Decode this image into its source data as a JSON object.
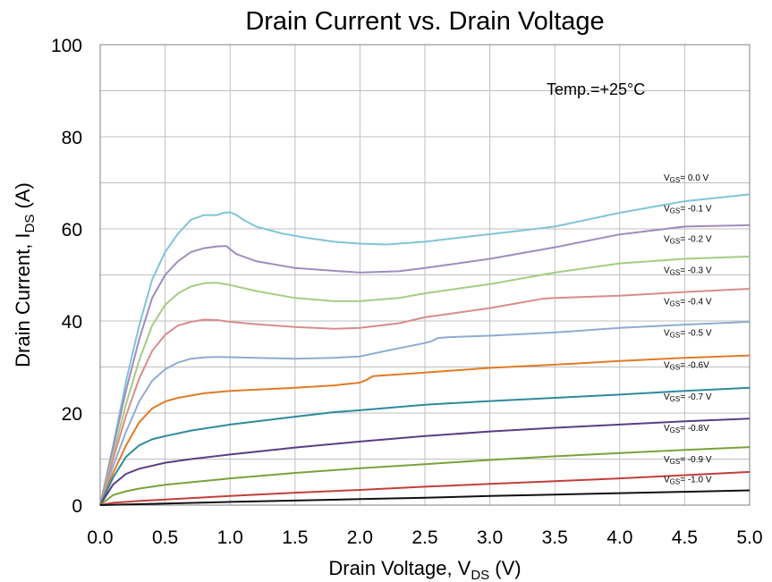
{
  "chart_data": {
    "type": "line",
    "title": "Drain Current vs. Drain Voltage",
    "xlabel": {
      "main": "Drain Voltage, V",
      "sub": "DS",
      "unit": " (V)"
    },
    "ylabel": {
      "main": "Drain Current, I",
      "sub": "DS",
      "unit": " (A)"
    },
    "xlim": [
      0,
      5
    ],
    "ylim": [
      0,
      100
    ],
    "x_ticks": [
      "0.0",
      "0.5",
      "1.0",
      "1.5",
      "2.0",
      "2.5",
      "3.0",
      "3.5",
      "4.0",
      "4.5",
      "5.0"
    ],
    "y_ticks": [
      "0",
      "20",
      "40",
      "60",
      "80",
      "100"
    ],
    "grid": true,
    "annotation": "Temp.=+25°C",
    "series": [
      {
        "name": "0.0 V",
        "label_pre": "V",
        "label_sub": "GS",
        "label_post": "= 0.0 V",
        "label_y": 70.5,
        "color": "#7fc4d8",
        "points": [
          [
            0,
            0
          ],
          [
            0.1,
            13
          ],
          [
            0.2,
            27
          ],
          [
            0.3,
            39
          ],
          [
            0.4,
            49
          ],
          [
            0.5,
            55
          ],
          [
            0.6,
            59
          ],
          [
            0.7,
            62
          ],
          [
            0.8,
            63
          ],
          [
            0.9,
            63
          ],
          [
            0.95,
            63.5
          ],
          [
            1.0,
            63.6
          ],
          [
            1.05,
            63
          ],
          [
            1.1,
            62
          ],
          [
            1.2,
            60.5
          ],
          [
            1.4,
            59
          ],
          [
            1.6,
            58
          ],
          [
            1.8,
            57.2
          ],
          [
            2.0,
            56.8
          ],
          [
            2.2,
            56.6
          ],
          [
            2.5,
            57.2
          ],
          [
            2.8,
            58.2
          ],
          [
            3.2,
            59.5
          ],
          [
            3.5,
            60.5
          ],
          [
            4.0,
            63.5
          ],
          [
            4.5,
            66
          ],
          [
            5.0,
            67.5
          ]
        ]
      },
      {
        "name": "-0.1 V",
        "label_pre": "V",
        "label_sub": "GS",
        "label_post": "= -0.1 V",
        "label_y": 63.8,
        "color": "#9f8cbf",
        "points": [
          [
            0,
            0
          ],
          [
            0.1,
            12.5
          ],
          [
            0.2,
            25
          ],
          [
            0.3,
            36
          ],
          [
            0.4,
            45
          ],
          [
            0.5,
            50
          ],
          [
            0.6,
            53
          ],
          [
            0.7,
            55
          ],
          [
            0.8,
            55.8
          ],
          [
            0.9,
            56.2
          ],
          [
            0.97,
            56.3
          ],
          [
            1.0,
            55.6
          ],
          [
            1.05,
            54.5
          ],
          [
            1.2,
            53
          ],
          [
            1.5,
            51.5
          ],
          [
            2.0,
            50.5
          ],
          [
            2.3,
            50.8
          ],
          [
            2.5,
            51.5
          ],
          [
            3.0,
            53.5
          ],
          [
            3.5,
            56
          ],
          [
            4.0,
            58.8
          ],
          [
            4.5,
            60.5
          ],
          [
            5.0,
            60.8
          ]
        ]
      },
      {
        "name": "-0.2 V",
        "label_pre": "V",
        "label_sub": "GS",
        "label_post": "= -0.2 V",
        "label_y": 57.2,
        "color": "#a6cc82",
        "points": [
          [
            0,
            0
          ],
          [
            0.1,
            11
          ],
          [
            0.2,
            22
          ],
          [
            0.3,
            31.5
          ],
          [
            0.4,
            39
          ],
          [
            0.5,
            43.5
          ],
          [
            0.6,
            46
          ],
          [
            0.7,
            47.5
          ],
          [
            0.8,
            48.2
          ],
          [
            0.9,
            48.3
          ],
          [
            1.0,
            47.8
          ],
          [
            1.2,
            46.5
          ],
          [
            1.5,
            45
          ],
          [
            1.8,
            44.3
          ],
          [
            2.0,
            44.3
          ],
          [
            2.3,
            45
          ],
          [
            2.5,
            46
          ],
          [
            3.0,
            48
          ],
          [
            3.5,
            50.5
          ],
          [
            4.0,
            52.5
          ],
          [
            4.5,
            53.5
          ],
          [
            5.0,
            54
          ]
        ]
      },
      {
        "name": "-0.3 V",
        "label_pre": "V",
        "label_sub": "GS",
        "label_post": "= -0.3 V",
        "label_y": 50.4,
        "color": "#d88c8c",
        "points": [
          [
            0,
            0
          ],
          [
            0.1,
            10
          ],
          [
            0.2,
            19.5
          ],
          [
            0.3,
            27.5
          ],
          [
            0.4,
            33.5
          ],
          [
            0.5,
            37
          ],
          [
            0.6,
            39
          ],
          [
            0.7,
            39.8
          ],
          [
            0.8,
            40.3
          ],
          [
            0.9,
            40.2
          ],
          [
            1.0,
            39.8
          ],
          [
            1.2,
            39.3
          ],
          [
            1.5,
            38.7
          ],
          [
            1.8,
            38.3
          ],
          [
            2.0,
            38.5
          ],
          [
            2.3,
            39.5
          ],
          [
            2.5,
            40.8
          ],
          [
            3.0,
            42.8
          ],
          [
            3.4,
            44.8
          ],
          [
            3.5,
            45
          ],
          [
            4.0,
            45.5
          ],
          [
            4.5,
            46.3
          ],
          [
            5.0,
            47
          ]
        ]
      },
      {
        "name": "-0.4 V",
        "label_pre": "V",
        "label_sub": "GS",
        "label_post": "= -0.4 V",
        "label_y": 43.6,
        "color": "#8facd2",
        "points": [
          [
            0,
            0
          ],
          [
            0.1,
            8.5
          ],
          [
            0.2,
            16
          ],
          [
            0.3,
            22.5
          ],
          [
            0.4,
            27
          ],
          [
            0.5,
            29.5
          ],
          [
            0.6,
            31
          ],
          [
            0.7,
            31.8
          ],
          [
            0.8,
            32.1
          ],
          [
            0.9,
            32.2
          ],
          [
            1.2,
            32
          ],
          [
            1.5,
            31.8
          ],
          [
            1.8,
            32
          ],
          [
            2.0,
            32.3
          ],
          [
            2.2,
            33.5
          ],
          [
            2.5,
            35.2
          ],
          [
            2.55,
            35.6
          ],
          [
            2.6,
            36.3
          ],
          [
            2.7,
            36.5
          ],
          [
            3.0,
            36.8
          ],
          [
            3.5,
            37.5
          ],
          [
            4.0,
            38.5
          ],
          [
            4.5,
            39.2
          ],
          [
            5.0,
            39.8
          ]
        ]
      },
      {
        "name": "-0.5 V",
        "label_pre": "V",
        "label_sub": "GS",
        "label_post": "= -0.5 V",
        "label_y": 36.8,
        "color": "#e07b25",
        "points": [
          [
            0,
            0
          ],
          [
            0.1,
            7
          ],
          [
            0.2,
            13
          ],
          [
            0.3,
            18
          ],
          [
            0.4,
            21
          ],
          [
            0.5,
            22.5
          ],
          [
            0.6,
            23.3
          ],
          [
            0.8,
            24.3
          ],
          [
            1.0,
            24.8
          ],
          [
            1.5,
            25.5
          ],
          [
            1.8,
            26
          ],
          [
            2.0,
            26.6
          ],
          [
            2.05,
            27.2
          ],
          [
            2.1,
            28
          ],
          [
            2.2,
            28.2
          ],
          [
            2.5,
            28.8
          ],
          [
            3.0,
            29.8
          ],
          [
            3.5,
            30.5
          ],
          [
            4.0,
            31.3
          ],
          [
            4.5,
            32
          ],
          [
            5.0,
            32.5
          ]
        ]
      },
      {
        "name": "-0.6V",
        "label_pre": "V",
        "label_sub": "GS",
        "label_post": "= -0.6V",
        "label_y": 29.8,
        "color": "#2d8a9c",
        "points": [
          [
            0,
            0
          ],
          [
            0.1,
            6
          ],
          [
            0.2,
            10.5
          ],
          [
            0.3,
            13
          ],
          [
            0.4,
            14.3
          ],
          [
            0.5,
            15
          ],
          [
            0.7,
            16.2
          ],
          [
            1.0,
            17.5
          ],
          [
            1.5,
            19.2
          ],
          [
            1.8,
            20.2
          ],
          [
            2.0,
            20.6
          ],
          [
            2.5,
            21.8
          ],
          [
            3.0,
            22.6
          ],
          [
            3.5,
            23.3
          ],
          [
            4.0,
            24
          ],
          [
            4.5,
            24.8
          ],
          [
            5.0,
            25.5
          ]
        ]
      },
      {
        "name": "-0.7 V",
        "label_pre": "V",
        "label_sub": "GS",
        "label_post": "= -0.7 V",
        "label_y": 22.9,
        "color": "#5c3d84",
        "points": [
          [
            0,
            0
          ],
          [
            0.1,
            4.5
          ],
          [
            0.2,
            6.8
          ],
          [
            0.3,
            7.9
          ],
          [
            0.5,
            9.2
          ],
          [
            0.7,
            10
          ],
          [
            1.0,
            11
          ],
          [
            1.5,
            12.5
          ],
          [
            2.0,
            13.8
          ],
          [
            2.5,
            15
          ],
          [
            3.0,
            16
          ],
          [
            3.5,
            16.8
          ],
          [
            4.0,
            17.5
          ],
          [
            4.5,
            18.2
          ],
          [
            5.0,
            18.8
          ]
        ]
      },
      {
        "name": "-0.8V",
        "label_pre": "V",
        "label_sub": "GS",
        "label_post": "= -0.8V",
        "label_y": 16.1,
        "color": "#7aa23a",
        "points": [
          [
            0,
            0
          ],
          [
            0.1,
            2.2
          ],
          [
            0.2,
            3
          ],
          [
            0.3,
            3.6
          ],
          [
            0.5,
            4.4
          ],
          [
            1.0,
            5.8
          ],
          [
            1.5,
            7
          ],
          [
            2.0,
            8
          ],
          [
            2.5,
            8.9
          ],
          [
            3.0,
            9.8
          ],
          [
            3.5,
            10.6
          ],
          [
            4.0,
            11.3
          ],
          [
            4.5,
            12
          ],
          [
            5.0,
            12.6
          ]
        ]
      },
      {
        "name": "-0.9 V",
        "label_pre": "V",
        "label_sub": "GS",
        "label_post": "= -0.9 V",
        "label_y": 9.3,
        "color": "#c0403a",
        "points": [
          [
            0,
            0
          ],
          [
            0.1,
            0.5
          ],
          [
            0.3,
            0.9
          ],
          [
            0.5,
            1.2
          ],
          [
            1.0,
            2
          ],
          [
            1.5,
            2.7
          ],
          [
            2.0,
            3.3
          ],
          [
            2.5,
            4
          ],
          [
            3.0,
            4.6
          ],
          [
            3.5,
            5.2
          ],
          [
            4.0,
            5.8
          ],
          [
            4.5,
            6.5
          ],
          [
            5.0,
            7.2
          ]
        ]
      },
      {
        "name": "-1.0 V",
        "label_pre": "V",
        "label_sub": "GS",
        "label_post": "= -1.0 V",
        "label_y": 5.0,
        "color": "#111111",
        "points": [
          [
            0,
            0
          ],
          [
            0.5,
            0.35
          ],
          [
            1.0,
            0.7
          ],
          [
            1.5,
            1
          ],
          [
            2.0,
            1.3
          ],
          [
            2.5,
            1.6
          ],
          [
            3.0,
            2
          ],
          [
            3.5,
            2.3
          ],
          [
            4.0,
            2.6
          ],
          [
            4.5,
            2.9
          ],
          [
            5.0,
            3.2
          ]
        ]
      }
    ]
  }
}
